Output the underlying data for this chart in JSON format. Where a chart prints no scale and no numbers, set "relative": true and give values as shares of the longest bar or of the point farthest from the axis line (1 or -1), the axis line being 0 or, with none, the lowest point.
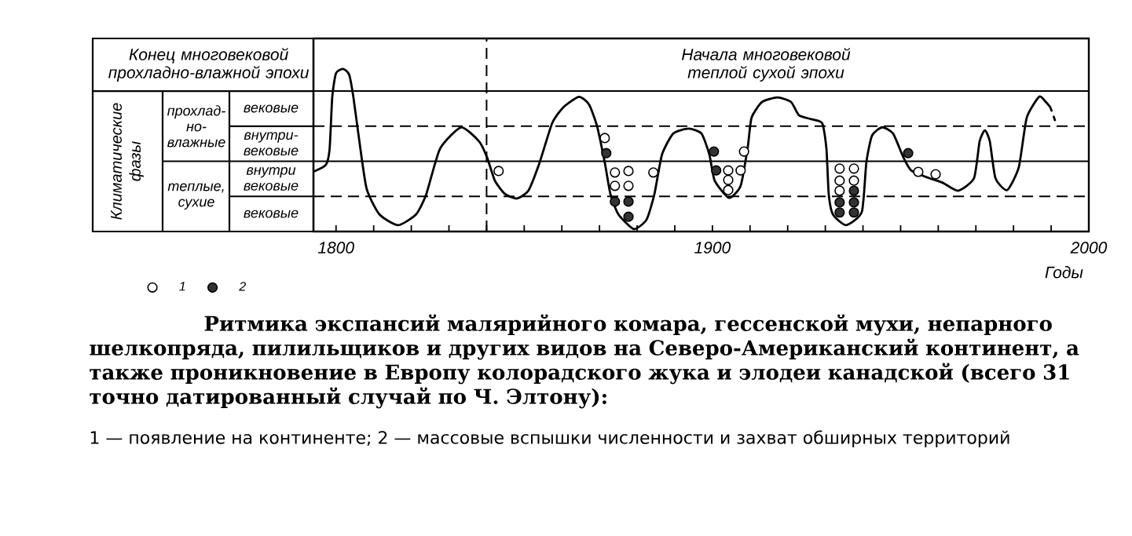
{
  "chart_data": {
    "type": "line",
    "relative": true,
    "title": "Ритмика экспансий малярийного комара, гессенской мухи, непарного шелкопряда, пилильщиков и других видов на Северо-Американский континент, а также проникновение в Европу колорадского жука и элодеи канадской (всего 31 точно датированный случай по Ч. Элтону):",
    "xlabel": "Годы",
    "annotations": [
      "Конец многовековой прохладно-влажной эпохи",
      "Начала многовековой теплой сухой эпохи",
      "прохлад-но-влажные",
      "теплые, сухие",
      "вековые",
      "внутри-вековые",
      "внутри вековые",
      "вековые",
      "Климатические фазы",
      "1 — появление на континенте; 2 — массовые вспышки численности и захват обширных территорий"
    ],
    "xlim": [
      1794,
      2000
    ],
    "xticks": [
      1800,
      {
        "value": 1810,
        "label": null
      },
      {
        "value": 1820,
        "label": null
      },
      {
        "value": 1830,
        "label": null
      },
      {
        "value": 1840,
        "label": null
      },
      {
        "value": 1850,
        "label": null
      },
      {
        "value": 1860,
        "label": null
      },
      {
        "value": 1870,
        "label": null
      },
      {
        "value": 1880,
        "label": null
      },
      {
        "value": 1890,
        "label": null
      },
      1900,
      {
        "value": 1910,
        "label": null
      },
      {
        "value": 1920,
        "label": null
      },
      {
        "value": 1930,
        "label": null
      },
      {
        "value": 1940,
        "label": null
      },
      {
        "value": 1950,
        "label": null
      },
      {
        "value": 1960,
        "label": null
      },
      {
        "value": 1970,
        "label": null
      },
      {
        "value": 1980,
        "label": null
      },
      {
        "value": 1990,
        "label": null
      },
      2000
    ],
    "ref_lines": [
      {
        "axis": "y",
        "value": 0.216,
        "line_style": "dashed"
      },
      {
        "axis": "y",
        "value": 0.432
      },
      {
        "axis": "y",
        "value": 0.648,
        "line_style": "dashed"
      },
      {
        "axis": "y",
        "value": 0.864
      },
      {
        "axis": "x",
        "value": 1840,
        "line_style": "dashed"
      }
    ],
    "legend": "bottom left",
    "series": [
      {
        "color": "#000000",
        "marker": "none",
        "x": [
          1794.4,
          1797.3,
          1798.3,
          1799,
          1800,
          1801.9,
          1803.5,
          1804.6,
          1806,
          1808.1,
          1811.5,
          1816.5,
          1821.3,
          1824,
          1827.6,
          1833.2,
          1838,
          1840.1,
          1842.2,
          1844.9,
          1848,
          1851.1,
          1854.1,
          1857.4,
          1860.3,
          1864.5,
          1867.2,
          1869.3,
          1871.4,
          1872.9,
          1875,
          1879.1,
          1882.5,
          1884.6,
          1886.6,
          1889.6,
          1893.7,
          1897.1,
          1899.2,
          1900.6,
          1904.4,
          1907.5,
          1909.4,
          1910.4,
          1913.2,
          1917.3,
          1920.9,
          1923,
          1926.3,
          1929.2,
          1930.3,
          1930.9,
          1932,
          1935.5,
          1939.7,
          1940.9,
          1942.4,
          1945.1,
          1948,
          1950.7,
          1952.8,
          1957.6,
          1961.2,
          1965.3,
          1969.5,
          1971,
          1972.4,
          1973.7,
          1975.2,
          1978.3,
          1981.4,
          1983.5,
          1986.8,
          1988.5
        ],
        "values": [
          0.372,
          0.41,
          0.508,
          0.829,
          0.974,
          1,
          0.965,
          0.829,
          0.59,
          0.266,
          0.106,
          0.039,
          0.106,
          0.231,
          0.508,
          0.641,
          0.555,
          0.458,
          0.313,
          0.231,
          0.203,
          0.251,
          0.425,
          0.665,
          0.762,
          0.829,
          0.782,
          0.652,
          0.425,
          0.231,
          0.106,
          0.015,
          0.073,
          0.231,
          0.473,
          0.603,
          0.633,
          0.603,
          0.473,
          0.313,
          0.207,
          0.281,
          0.521,
          0.7,
          0.797,
          0.825,
          0.797,
          0.715,
          0.691,
          0.665,
          0.508,
          0.231,
          0.106,
          0.039,
          0.121,
          0.425,
          0.59,
          0.641,
          0.603,
          0.458,
          0.376,
          0.328,
          0.3,
          0.251,
          0.328,
          0.555,
          0.622,
          0.555,
          0.328,
          0.255,
          0.395,
          0.7,
          0.829,
          0.799
        ]
      },
      {
        "type": "scatter",
        "name": "1",
        "color": "#ffffff",
        "marker": "circle",
        "x": [
          1843.2,
          1871.4,
          1874.1,
          1874.1,
          1877.7,
          1877.7,
          1884.3,
          1904.2,
          1904.2,
          1904.2,
          1907.5,
          1908.4,
          1933.8,
          1933.8,
          1933.8,
          1937.6,
          1937.6,
          1954.7,
          1959.3
        ],
        "values": [
          0.372,
          0.575,
          0.363,
          0.281,
          0.372,
          0.281,
          0.363,
          0.376,
          0.317,
          0.255,
          0.376,
          0.492,
          0.387,
          0.313,
          0.251,
          0.387,
          0.313,
          0.367,
          0.352
        ]
      },
      {
        "type": "scatter",
        "name": "2",
        "color": "#333333",
        "marker": "circle",
        "x": [
          1871.8,
          1874.1,
          1877.7,
          1877.7,
          1900.4,
          1901,
          1933.8,
          1933.8,
          1937.6,
          1937.6,
          1937.6,
          1952
        ],
        "values": [
          0.482,
          0.184,
          0.184,
          0.091,
          0.492,
          0.376,
          0.179,
          0.117,
          0.251,
          0.179,
          0.117,
          0.482
        ]
      },
      {
        "color": "#000000",
        "marker": "none",
        "line_style": "dashed",
        "x": [
          1988.5,
          1989.8,
          1991
        ],
        "values": [
          0.799,
          0.762,
          0.685
        ]
      }
    ]
  }
}
